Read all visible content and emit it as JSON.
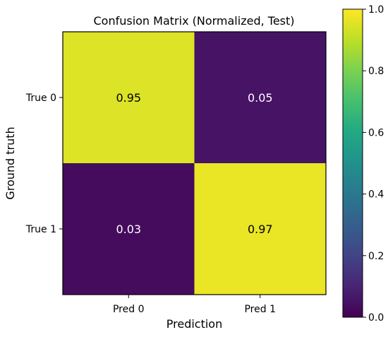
{
  "chart_data": {
    "type": "heatmap",
    "title": "Confusion Matrix (Normalized, Test)",
    "xlabel": "Prediction",
    "ylabel": "Ground truth",
    "x_categories": [
      "Pred 0",
      "Pred 1"
    ],
    "y_categories": [
      "True 0",
      "True 1"
    ],
    "values": [
      [
        0.95,
        0.05
      ],
      [
        0.03,
        0.97
      ]
    ],
    "cell_labels": [
      [
        "0.95",
        "0.05"
      ],
      [
        "0.03",
        "0.97"
      ]
    ],
    "colorbar": {
      "colormap": "viridis",
      "range": [
        0.0,
        1.0
      ],
      "ticks": [
        "0.0",
        "0.2",
        "0.4",
        "0.6",
        "0.8",
        "1.0"
      ]
    }
  }
}
